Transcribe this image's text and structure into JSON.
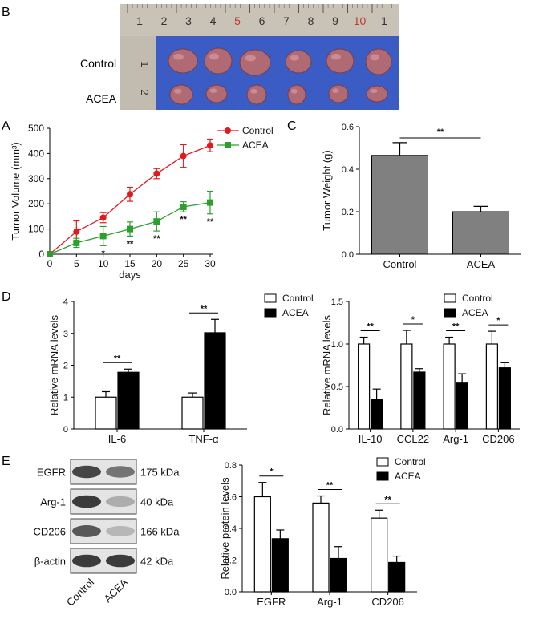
{
  "panel_letters": {
    "a": "A",
    "b": "B",
    "c": "C",
    "d": "D",
    "e": "E"
  },
  "panel_b": {
    "ruler_numbers": [
      "1",
      "2",
      "3",
      "4",
      "5",
      "6",
      "7",
      "8",
      "9",
      "10",
      "1"
    ],
    "ruler_highlight": [
      "5",
      "10"
    ],
    "side_ruler_numbers": [
      "1",
      "2"
    ],
    "rows": [
      "Control",
      "ACEA"
    ],
    "tumors_per_row": 6,
    "colors": {
      "ruler": "#b8b2a6",
      "tray": "#3b5cc4",
      "tumor": "#b06a73",
      "highlight": "#c0392b"
    }
  },
  "chart_data": [
    {
      "id": "A",
      "type": "line",
      "xlabel": "days",
      "ylabel": "Tumor Volume (mm³)",
      "x": [
        0,
        5,
        10,
        15,
        20,
        25,
        30
      ],
      "xlim": [
        0,
        30
      ],
      "ylim": [
        0,
        500
      ],
      "xticks": [
        0,
        5,
        10,
        15,
        20,
        25,
        30
      ],
      "yticks": [
        0,
        100,
        200,
        300,
        400,
        500
      ],
      "legend_position": "top-right",
      "series": [
        {
          "name": "Control",
          "color": "#e31a1c",
          "marker": "circle",
          "values": [
            0,
            90,
            145,
            238,
            320,
            390,
            432
          ],
          "errors": [
            0,
            42,
            20,
            28,
            20,
            45,
            25
          ]
        },
        {
          "name": "ACEA",
          "color": "#2ca02c",
          "marker": "square",
          "values": [
            0,
            45,
            72,
            100,
            130,
            188,
            205
          ],
          "errors": [
            0,
            18,
            38,
            28,
            38,
            20,
            45
          ]
        }
      ],
      "annotations": [
        {
          "x": 10,
          "text": "*"
        },
        {
          "x": 15,
          "text": "**"
        },
        {
          "x": 20,
          "text": "**"
        },
        {
          "x": 25,
          "text": "**"
        },
        {
          "x": 30,
          "text": "**"
        }
      ]
    },
    {
      "id": "C",
      "type": "bar",
      "ylabel": "Tumor Weight (g)",
      "categories": [
        "Control",
        "ACEA"
      ],
      "values": [
        0.465,
        0.2
      ],
      "errors": [
        0.06,
        0.025
      ],
      "ylim": [
        0,
        0.6
      ],
      "yticks": [
        "0.0",
        "0.2",
        "0.4",
        "0.6"
      ],
      "bar_color": "#808080",
      "significance": [
        {
          "between": [
            0,
            1
          ],
          "text": "**"
        }
      ]
    },
    {
      "id": "D-left",
      "type": "bar",
      "ylabel": "Relative mRNA levels",
      "categories": [
        "IL-6",
        "TNF-α"
      ],
      "series": [
        {
          "name": "Control",
          "fill": "#ffffff",
          "values": [
            1.0,
            1.0
          ],
          "errors": [
            0.17,
            0.13
          ]
        },
        {
          "name": "ACEA",
          "fill": "#000000",
          "values": [
            1.78,
            3.02
          ],
          "errors": [
            0.1,
            0.42
          ]
        }
      ],
      "ylim": [
        0,
        4
      ],
      "yticks": [
        "0",
        "1",
        "2",
        "3",
        "4"
      ],
      "legend_position": "top-right",
      "significance": [
        {
          "category": 0,
          "text": "**"
        },
        {
          "category": 1,
          "text": "**"
        }
      ]
    },
    {
      "id": "D-right",
      "type": "bar",
      "ylabel": "Relative mRNA levels",
      "categories": [
        "IL-10",
        "CCL22",
        "Arg-1",
        "CD206"
      ],
      "series": [
        {
          "name": "Control",
          "fill": "#ffffff",
          "values": [
            1.0,
            1.0,
            1.0,
            1.0
          ],
          "errors": [
            0.08,
            0.16,
            0.08,
            0.15
          ]
        },
        {
          "name": "ACEA",
          "fill": "#000000",
          "values": [
            0.35,
            0.67,
            0.54,
            0.72
          ],
          "errors": [
            0.12,
            0.04,
            0.11,
            0.06
          ]
        }
      ],
      "ylim": [
        0,
        1.5
      ],
      "yticks": [
        "0.0",
        "0.5",
        "1.0",
        "1.5"
      ],
      "legend_position": "top-right",
      "significance": [
        {
          "category": 0,
          "text": "**"
        },
        {
          "category": 1,
          "text": "*"
        },
        {
          "category": 2,
          "text": "**"
        },
        {
          "category": 3,
          "text": "*"
        }
      ]
    },
    {
      "id": "E",
      "type": "bar",
      "ylabel": "Relative protein levels",
      "categories": [
        "EGFR",
        "Arg-1",
        "CD206"
      ],
      "series": [
        {
          "name": "Control",
          "fill": "#ffffff",
          "values": [
            0.6,
            0.56,
            0.465
          ],
          "errors": [
            0.09,
            0.045,
            0.05
          ]
        },
        {
          "name": "ACEA",
          "fill": "#000000",
          "values": [
            0.335,
            0.21,
            0.185
          ],
          "errors": [
            0.055,
            0.075,
            0.04
          ]
        }
      ],
      "ylim": [
        0,
        0.8
      ],
      "yticks": [
        "0.0",
        "0.2",
        "0.4",
        "0.6",
        "0.8"
      ],
      "legend_position": "top-right",
      "significance": [
        {
          "category": 0,
          "text": "*"
        },
        {
          "category": 1,
          "text": "**"
        },
        {
          "category": 2,
          "text": "**"
        }
      ]
    }
  ],
  "blot": {
    "proteins": [
      {
        "name": "EGFR",
        "kda": "175 kDa",
        "intensity": [
          0.85,
          0.6
        ]
      },
      {
        "name": "Arg-1",
        "kda": "40 kDa",
        "intensity": [
          0.9,
          0.3
        ]
      },
      {
        "name": "CD206",
        "kda": "166 kDa",
        "intensity": [
          0.75,
          0.25
        ]
      },
      {
        "name": "β-actin",
        "kda": "42 kDa",
        "intensity": [
          0.9,
          0.9
        ]
      }
    ],
    "lanes": [
      "Control",
      "ACEA"
    ]
  }
}
